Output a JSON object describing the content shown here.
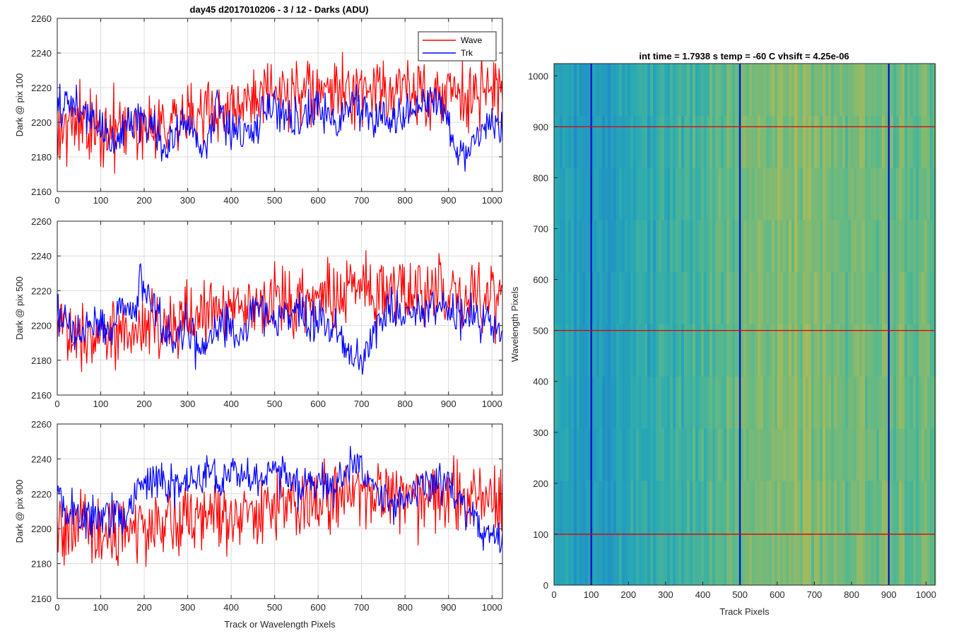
{
  "figure": {
    "left_title": "day45 d2017010206 - 3 / 12 - Darks (ADU)",
    "right_title": "int time = 1.7938 s    temp = -60 C    vhsift = 4.25e-06"
  },
  "chart_data": [
    {
      "type": "line",
      "title": "day45 d2017010206 - 3 / 12 - Darks (ADU)",
      "xlabel": "",
      "ylabel": "Dark @ pix 100",
      "xlim": [
        0,
        1024
      ],
      "ylim": [
        2160,
        2260
      ],
      "xticks": [
        0,
        100,
        200,
        300,
        400,
        500,
        600,
        700,
        800,
        900,
        1000
      ],
      "yticks": [
        2160,
        2180,
        2200,
        2220,
        2240,
        2260
      ],
      "grid": true,
      "legend": {
        "placement": "top-right",
        "entries": [
          "Wave",
          "Trk"
        ]
      },
      "series": [
        {
          "name": "Wave",
          "color": "#ff0000",
          "noise": 10,
          "x": [
            0,
            100,
            150,
            200,
            300,
            400,
            480,
            560,
            620,
            700,
            800,
            900,
            1024
          ],
          "y": [
            2200,
            2196,
            2194,
            2200,
            2204,
            2207,
            2214,
            2216,
            2216,
            2218,
            2218,
            2216,
            2216
          ]
        },
        {
          "name": "Trk",
          "color": "#0000ff",
          "noise": 6,
          "x": [
            0,
            20,
            60,
            100,
            130,
            170,
            220,
            240,
            300,
            340,
            370,
            400,
            440,
            470,
            500,
            560,
            600,
            640,
            680,
            720,
            760,
            800,
            860,
            900,
            920,
            950,
            1000,
            1024
          ],
          "y": [
            2205,
            2212,
            2206,
            2198,
            2186,
            2202,
            2200,
            2185,
            2198,
            2185,
            2210,
            2192,
            2195,
            2204,
            2210,
            2200,
            2208,
            2200,
            2212,
            2205,
            2200,
            2205,
            2215,
            2200,
            2182,
            2186,
            2200,
            2194
          ]
        }
      ]
    },
    {
      "type": "line",
      "title": "",
      "xlabel": "",
      "ylabel": "Dark @ pix 500",
      "xlim": [
        0,
        1024
      ],
      "ylim": [
        2160,
        2260
      ],
      "xticks": [
        0,
        100,
        200,
        300,
        400,
        500,
        600,
        700,
        800,
        900,
        1000
      ],
      "yticks": [
        2160,
        2180,
        2200,
        2220,
        2240,
        2260
      ],
      "grid": true,
      "series": [
        {
          "name": "Wave",
          "color": "#ff0000",
          "noise": 10,
          "x": [
            0,
            100,
            200,
            300,
            400,
            500,
            600,
            700,
            800,
            900,
            1024
          ],
          "y": [
            2198,
            2196,
            2200,
            2205,
            2210,
            2214,
            2218,
            2220,
            2220,
            2218,
            2218
          ]
        },
        {
          "name": "Trk",
          "color": "#0000ff",
          "noise": 6,
          "x": [
            0,
            40,
            80,
            120,
            150,
            180,
            190,
            220,
            260,
            300,
            330,
            350,
            380,
            420,
            450,
            480,
            500,
            550,
            580,
            620,
            660,
            700,
            730,
            760,
            800,
            850,
            900,
            950,
            1000,
            1024
          ],
          "y": [
            2208,
            2196,
            2200,
            2196,
            2215,
            2210,
            2228,
            2210,
            2190,
            2200,
            2186,
            2194,
            2205,
            2188,
            2212,
            2208,
            2200,
            2210,
            2200,
            2205,
            2192,
            2176,
            2198,
            2210,
            2206,
            2215,
            2208,
            2206,
            2200,
            2198
          ]
        }
      ]
    },
    {
      "type": "line",
      "title": "",
      "xlabel": "Track or Wavelength Pixels",
      "ylabel": "Dark @ pix 900",
      "xlim": [
        0,
        1024
      ],
      "ylim": [
        2160,
        2260
      ],
      "xticks": [
        0,
        100,
        200,
        300,
        400,
        500,
        600,
        700,
        800,
        900,
        1000
      ],
      "yticks": [
        2160,
        2180,
        2200,
        2220,
        2240,
        2260
      ],
      "grid": true,
      "series": [
        {
          "name": "Wave",
          "color": "#ff0000",
          "noise": 10,
          "x": [
            0,
            100,
            200,
            300,
            400,
            500,
            600,
            700,
            800,
            900,
            1024
          ],
          "y": [
            2198,
            2196,
            2200,
            2205,
            2210,
            2214,
            2216,
            2218,
            2218,
            2216,
            2216
          ]
        },
        {
          "name": "Trk",
          "color": "#0000ff",
          "noise": 6,
          "x": [
            0,
            20,
            60,
            100,
            150,
            180,
            200,
            260,
            300,
            350,
            380,
            400,
            440,
            480,
            500,
            560,
            600,
            640,
            680,
            700,
            760,
            800,
            860,
            900,
            950,
            980,
            1024
          ],
          "y": [
            2225,
            2210,
            2206,
            2208,
            2206,
            2220,
            2228,
            2225,
            2225,
            2232,
            2224,
            2236,
            2225,
            2232,
            2236,
            2225,
            2230,
            2222,
            2236,
            2234,
            2212,
            2218,
            2230,
            2225,
            2208,
            2195,
            2195
          ]
        }
      ]
    },
    {
      "type": "heatmap",
      "title": "int time = 1.7938 s    temp = -60 C    vhsift = 4.25e-06",
      "xlabel": "Track Pixels",
      "ylabel": "Wavelength Pixels",
      "xlim": [
        0,
        1024
      ],
      "ylim": [
        0,
        1024
      ],
      "xticks": [
        0,
        100,
        200,
        300,
        400,
        500,
        600,
        700,
        800,
        900,
        1000
      ],
      "yticks": [
        0,
        100,
        200,
        300,
        400,
        500,
        600,
        700,
        800,
        900,
        1000
      ],
      "colormap": [
        "#1f8fc8",
        "#28a9b4",
        "#5cb989",
        "#a8ba5a",
        "#c8b848"
      ],
      "column_level": {
        "x": [
          0,
          50,
          100,
          150,
          200,
          300,
          400,
          500,
          600,
          700,
          800,
          900,
          1024
        ],
        "v": [
          0.18,
          0.12,
          0.1,
          0.12,
          0.18,
          0.28,
          0.4,
          0.52,
          0.66,
          0.62,
          0.58,
          0.55,
          0.5
        ]
      },
      "vertical_lines": {
        "x": [
          100,
          500,
          900
        ],
        "color": "#0000cc"
      },
      "horizontal_lines": {
        "y": [
          100,
          500,
          900
        ],
        "color": "#e00000"
      }
    }
  ]
}
